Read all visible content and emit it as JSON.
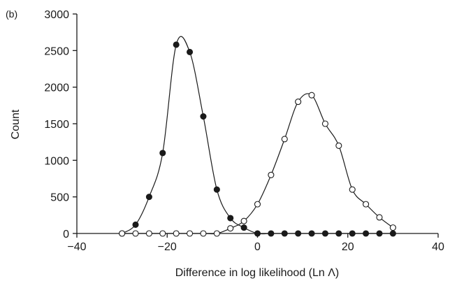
{
  "chart_data": {
    "type": "scatter",
    "panel_label": "(b)",
    "title": "",
    "xlabel": "Difference in log likelihood (Ln Λ)",
    "ylabel": "Count",
    "xlim": [
      -40,
      40
    ],
    "ylim": [
      0,
      3000
    ],
    "xticks": [
      -40,
      -20,
      0,
      20,
      40
    ],
    "xtick_labels": [
      "−40",
      "−20",
      "0",
      "20",
      "40"
    ],
    "yticks": [
      0,
      500,
      1000,
      1500,
      2000,
      2500,
      3000
    ],
    "ytick_labels": [
      "0",
      "500",
      "1000",
      "1500",
      "2000",
      "2500",
      "3000"
    ],
    "grid": false,
    "legend": "none",
    "series": [
      {
        "marker": "filled-circle",
        "color": "#1a1a1a",
        "x": [
          -30,
          -27,
          -24,
          -21,
          -18,
          -15,
          -12,
          -9,
          -6,
          -3,
          0,
          3,
          6,
          9,
          12,
          15,
          18,
          21,
          24,
          27,
          30
        ],
        "y": [
          0,
          120,
          500,
          1100,
          2580,
          2480,
          1600,
          600,
          210,
          80,
          0,
          0,
          0,
          0,
          0,
          0,
          0,
          0,
          0,
          0,
          0
        ]
      },
      {
        "marker": "open-circle",
        "color": "#1a1a1a",
        "x": [
          -30,
          -27,
          -24,
          -21,
          -18,
          -15,
          -12,
          -9,
          -6,
          -3,
          0,
          3,
          6,
          9,
          12,
          15,
          18,
          21,
          24,
          27,
          30
        ],
        "y": [
          0,
          0,
          0,
          0,
          0,
          0,
          0,
          0,
          70,
          170,
          400,
          800,
          1290,
          1800,
          1890,
          1500,
          1200,
          600,
          400,
          220,
          80
        ]
      }
    ]
  }
}
